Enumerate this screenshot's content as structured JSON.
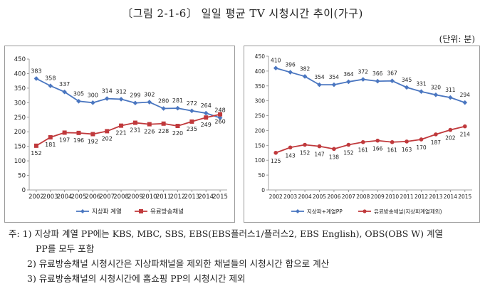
{
  "figure": {
    "title": "〔그림 2-1-6〕  일일 평균 TV 시청시간 추이(가구)",
    "unit": "(단위: 분)"
  },
  "colors": {
    "terrestrial": "#4a76c0",
    "paytv": "#c0393c"
  },
  "chart_data": [
    {
      "type": "line",
      "x": [
        "2002",
        "2003",
        "2004",
        "2005",
        "2006",
        "2007",
        "2008",
        "2009",
        "2010",
        "2011",
        "2012",
        "2013",
        "2014",
        "2015"
      ],
      "ylim": [
        0,
        450
      ],
      "yticks": [
        0,
        50,
        100,
        150,
        200,
        250,
        300,
        350,
        400,
        450
      ],
      "grid": false,
      "legend": "bottom",
      "series": [
        {
          "name": "지상파 계열",
          "color": "#4a76c0",
          "marker": "diamond",
          "values": [
            383,
            358,
            337,
            305,
            300,
            314,
            312,
            299,
            302,
            280,
            281,
            272,
            264,
            248
          ]
        },
        {
          "name": "유료방송채널",
          "color": "#c0393c",
          "marker": "square",
          "values": [
            152,
            181,
            197,
            196,
            192,
            202,
            221,
            231,
            226,
            228,
            220,
            235,
            249,
            260
          ]
        }
      ]
    },
    {
      "type": "line",
      "x": [
        "2002",
        "2003",
        "2004",
        "2005",
        "2006",
        "2007",
        "2008",
        "2009",
        "2010",
        "2011",
        "2012",
        "2013",
        "2014",
        "2015"
      ],
      "ylim": [
        0,
        450
      ],
      "yticks": [
        0,
        50,
        100,
        150,
        200,
        250,
        300,
        350,
        400,
        450
      ],
      "grid": false,
      "legend": "bottom",
      "series": [
        {
          "name": "지상파+계열PP",
          "color": "#4a76c0",
          "marker": "diamond",
          "values": [
            410,
            396,
            382,
            354,
            354,
            364,
            372,
            366,
            367,
            345,
            331,
            320,
            311,
            294
          ]
        },
        {
          "name": "유료방송채널(지상파계열제외)",
          "color": "#c0393c",
          "marker": "circle",
          "values": [
            125,
            143,
            152,
            147,
            138,
            152,
            161,
            166,
            161,
            163,
            170,
            187,
            202,
            214
          ]
        }
      ]
    }
  ],
  "notes": [
    "주: 1) 지상파 계열 PP에는 KBS, MBC, SBS, EBS(EBS플러스1/플러스2, EBS English), OBS(OBS W) 계열",
    "PP를 모두 포함",
    "2) 유료방송채널 시청시간은 지상파채널을 제외한 채널들의 시청시간 합으로 계산",
    "3) 유료방송채널의 시청시간에 홈쇼핑 PP의 시청시간 제외"
  ]
}
